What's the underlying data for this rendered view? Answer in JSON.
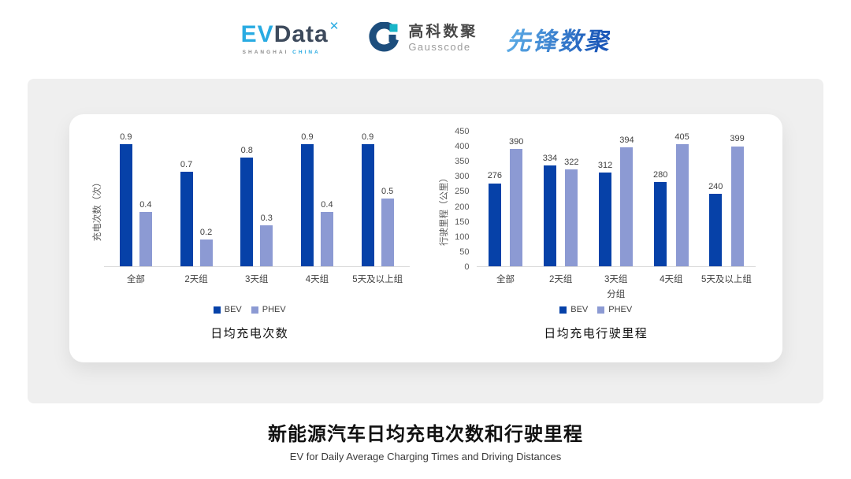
{
  "header": {
    "evdata": {
      "ev": "EV",
      "data": "Data",
      "mark": "✕",
      "sub1": "SHANGHAI",
      "sub2": "CHINA"
    },
    "gausscode": {
      "cn": "高科数聚",
      "en": "Gausscode"
    },
    "xianfeng": {
      "text": "先锋数聚"
    }
  },
  "chart_data": [
    {
      "type": "bar",
      "title": "日均充电次数",
      "ylabel": "充电次数（次）",
      "xlabel": "",
      "categories": [
        "全部",
        "2天组",
        "3天组",
        "4天组",
        "5天及以上组"
      ],
      "series": [
        {
          "name": "BEV",
          "color": "#0641a8",
          "values": [
            0.9,
            0.7,
            0.8,
            0.9,
            0.9
          ]
        },
        {
          "name": "PHEV",
          "color": "#8c9ad3",
          "values": [
            0.4,
            0.2,
            0.3,
            0.4,
            0.5
          ]
        }
      ],
      "ylim": [
        0,
        1
      ],
      "yticks": [],
      "grid": false,
      "legend_position": "bottom",
      "show_data_labels": true
    },
    {
      "type": "bar",
      "title": "日均充电行驶里程",
      "ylabel": "行驶里程（公里）",
      "xlabel": "分组",
      "categories": [
        "全部",
        "2天组",
        "3天组",
        "4天组",
        "5天及以上组"
      ],
      "series": [
        {
          "name": "BEV",
          "color": "#0641a8",
          "values": [
            276,
            334,
            312,
            280,
            240
          ]
        },
        {
          "name": "PHEV",
          "color": "#8c9ad3",
          "values": [
            390,
            322,
            394,
            405,
            399
          ]
        }
      ],
      "ylim": [
        0,
        450
      ],
      "yticks": [
        0,
        50,
        100,
        150,
        200,
        250,
        300,
        350,
        400,
        450
      ],
      "grid": false,
      "legend_position": "bottom",
      "show_data_labels": true
    }
  ],
  "footer": {
    "title": "新能源汽车日均充电次数和行驶里程",
    "subtitle": "EV for Daily Average Charging Times and Driving Distances"
  },
  "colors": {
    "bev": "#0641a8",
    "phev": "#8c9ad3",
    "card_bg": "#efefef",
    "panel_bg": "#ffffff",
    "axis_line": "#d9d9d9",
    "accent_cyan": "#29abe2",
    "gausscode_navy": "#1d4e7d",
    "gausscode_teal": "#19b6c9"
  }
}
